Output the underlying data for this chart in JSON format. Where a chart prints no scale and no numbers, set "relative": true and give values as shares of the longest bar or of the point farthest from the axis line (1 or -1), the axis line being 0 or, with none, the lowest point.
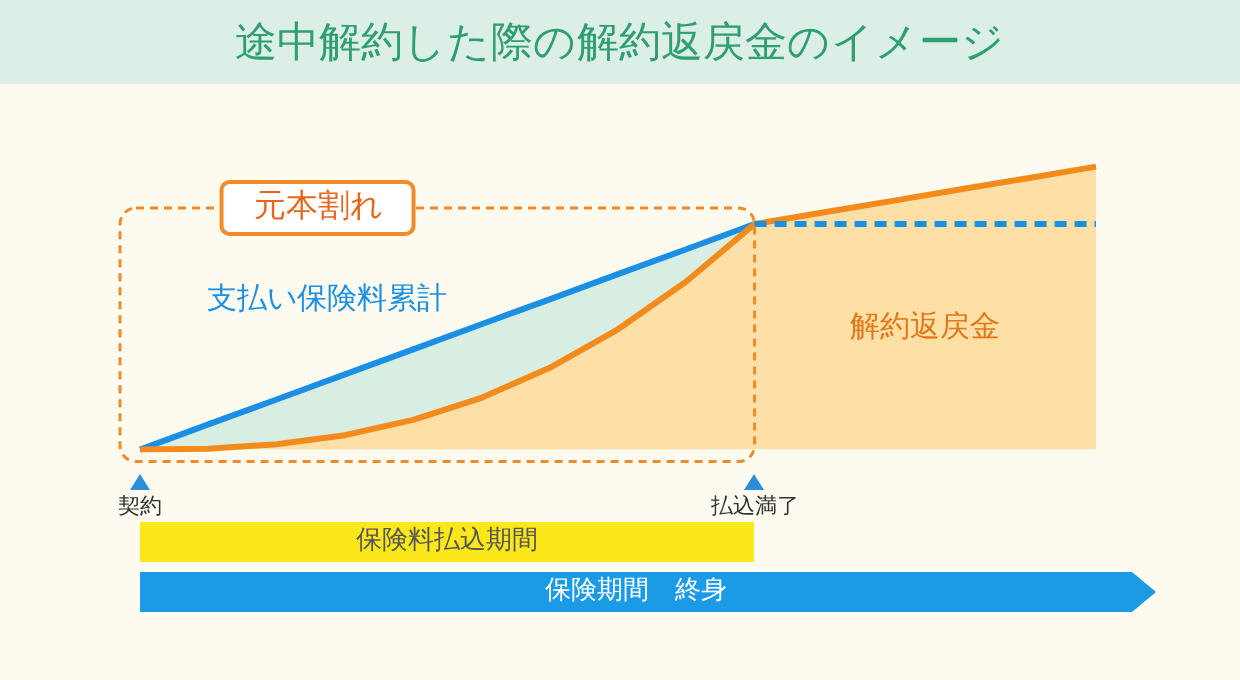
{
  "chart_data": {
    "type": "line",
    "title": "途中解約した際の解約返戻金のイメージ",
    "relative": true,
    "marker": "none",
    "legend": false,
    "grid": false,
    "categories": [
      "契約",
      null,
      null,
      null,
      null,
      null,
      null,
      null,
      null,
      "払込満了",
      null,
      null,
      null,
      null,
      null
    ],
    "series": [
      {
        "name": "解約返戻金",
        "type": "area",
        "color": "#f28a1c",
        "values": [
          0,
          0.0033,
          0.019,
          0.051,
          0.105,
          0.183,
          0.289,
          0.425,
          0.594,
          0.797,
          0.838,
          0.878,
          0.919,
          0.959,
          1
        ]
      },
      {
        "name": "支払い保険料累計",
        "type": "area",
        "color": "#1a8fe3",
        "values": [
          0,
          0.089,
          0.177,
          0.266,
          0.354,
          0.443,
          0.531,
          0.62,
          0.708,
          0.797,
          null,
          null,
          null,
          null,
          null
        ]
      },
      {
        "type": "line",
        "color": "#1a8fe3",
        "line_style": "dashed",
        "values": [
          null,
          null,
          null,
          null,
          null,
          null,
          null,
          null,
          null,
          0.797,
          0.797,
          0.797,
          0.797,
          0.797,
          0.797
        ]
      }
    ],
    "annotations": [
      "元本割れ",
      "保険料払込期間",
      "保険期間　終身"
    ]
  }
}
